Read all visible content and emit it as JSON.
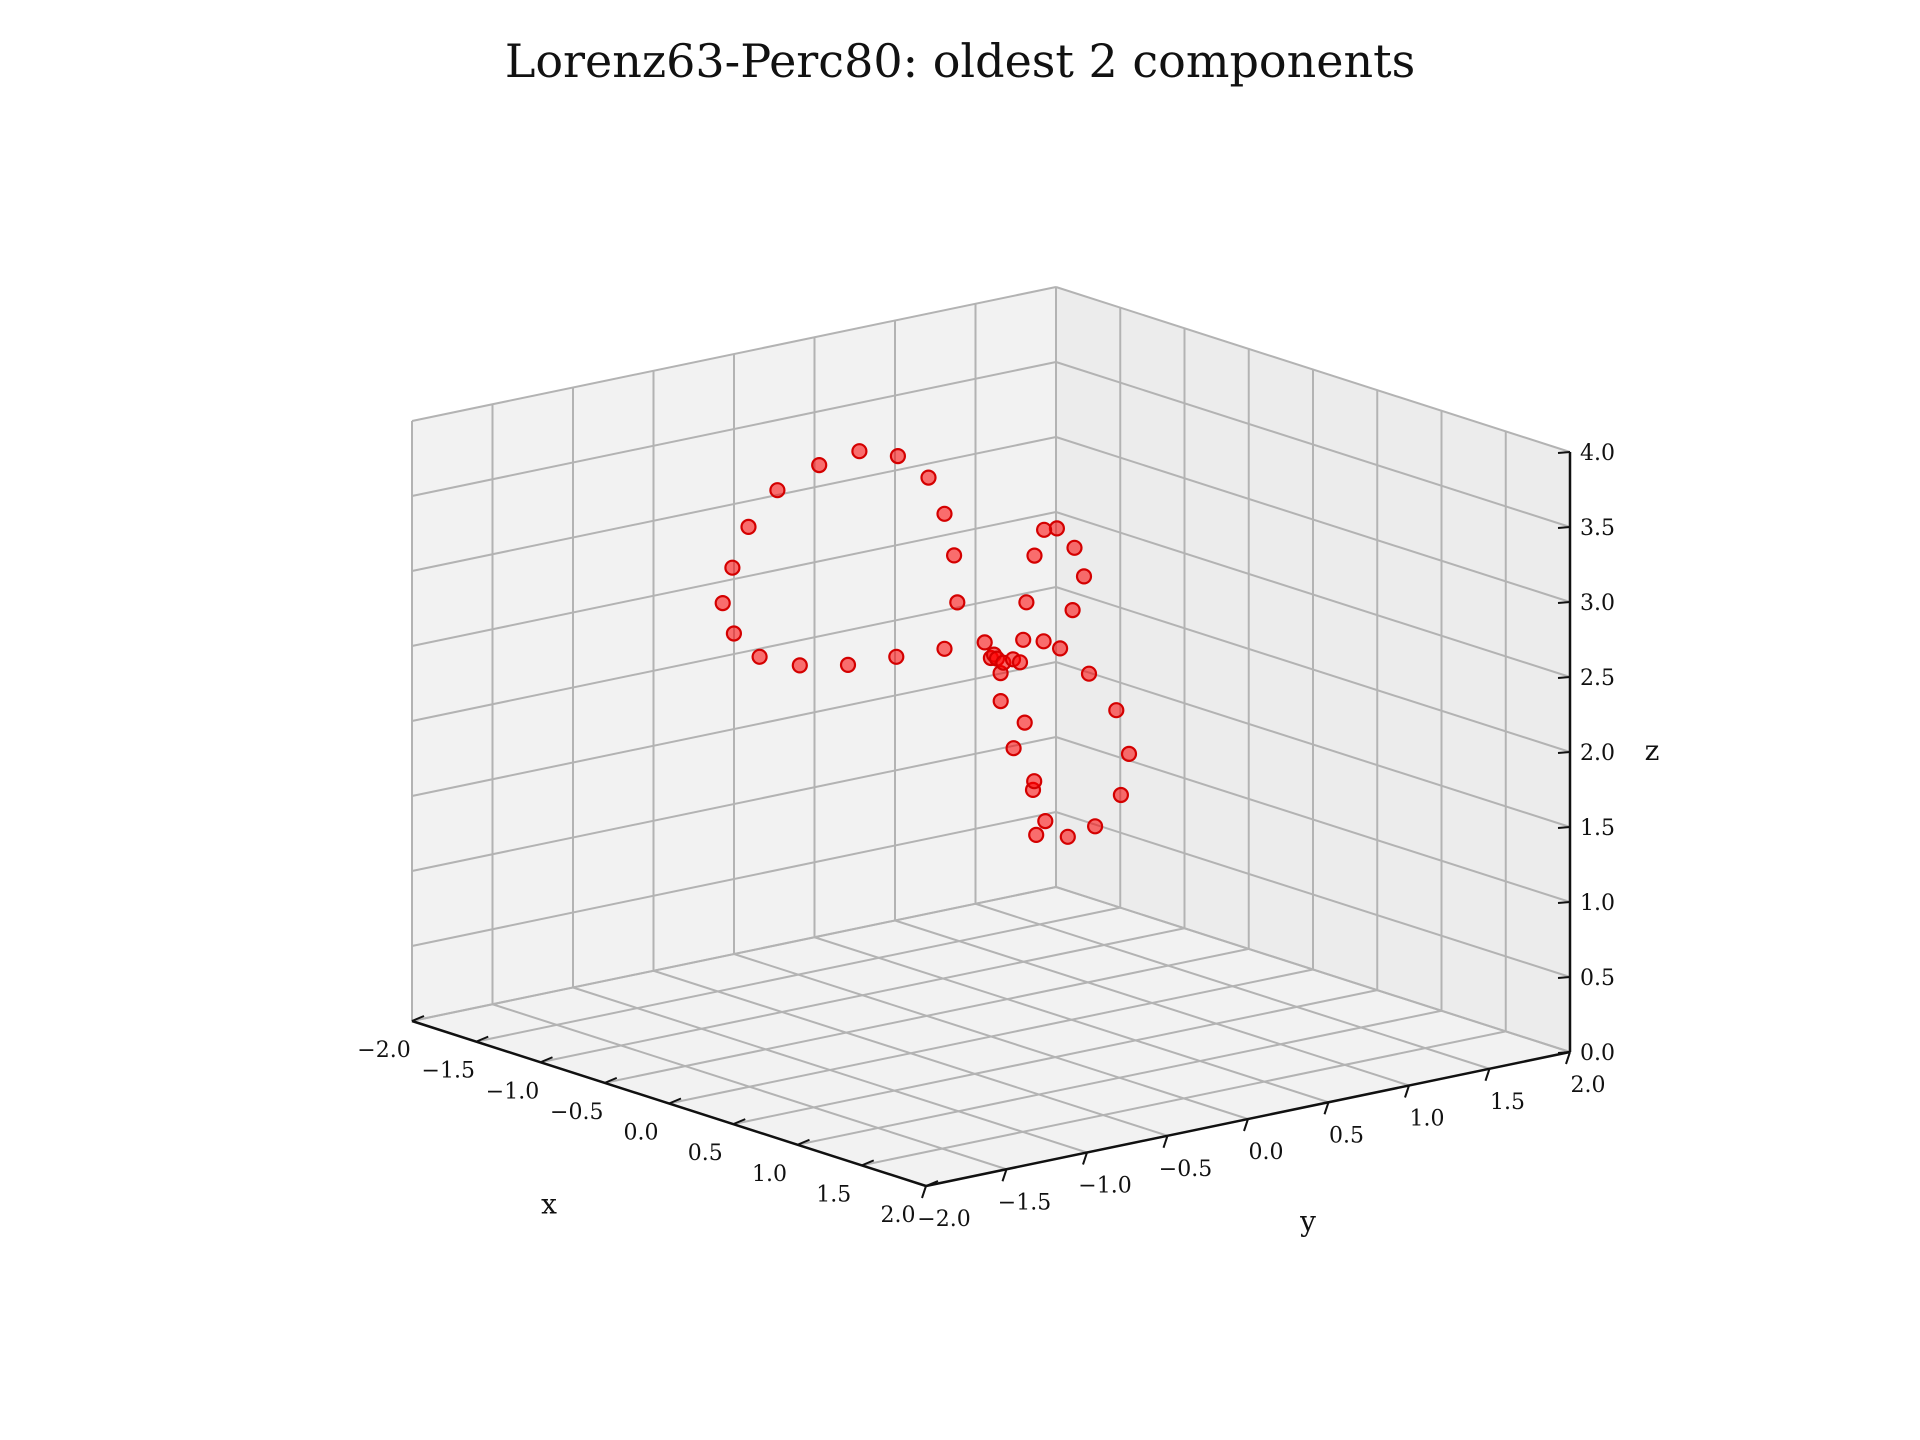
{
  "title": "Lorenz63-Perc80: oldest 2 components",
  "chart_data": {
    "type": "scatter",
    "projection": "3d",
    "title": "Lorenz63-Perc80: oldest 2 components",
    "xlabel": "x",
    "ylabel": "y",
    "zlabel": "z",
    "xlim": [
      -2.0,
      2.0
    ],
    "ylim": [
      -2.0,
      2.0
    ],
    "zlim": [
      0.0,
      4.0
    ],
    "x_ticks": [
      "−2.0",
      "−1.5",
      "−1.0",
      "−0.5",
      "0.0",
      "0.5",
      "1.0",
      "1.5",
      "2.0"
    ],
    "y_ticks": [
      "−2.0",
      "−1.5",
      "−1.0",
      "−0.5",
      "0.0",
      "0.5",
      "1.0",
      "1.5",
      "2.0"
    ],
    "z_ticks": [
      "0.0",
      "0.5",
      "1.0",
      "1.5",
      "2.0",
      "2.5",
      "3.0",
      "3.5",
      "4.0"
    ],
    "grid": true,
    "marker_color": "#ff0000",
    "marker_edge_color": "#d40000",
    "series": [
      {
        "points": [
          [
            -0.4,
            0.6,
            1.1
          ],
          [
            -0.3,
            0.5,
            1.45
          ],
          [
            -0.2,
            0.3,
            1.8
          ],
          [
            -0.05,
            0.1,
            2.2
          ],
          [
            0.2,
            -0.1,
            2.5
          ],
          [
            0.5,
            -0.4,
            2.75
          ],
          [
            0.9,
            -0.7,
            2.95
          ],
          [
            1.3,
            -1.0,
            3.1
          ],
          [
            1.6,
            -1.2,
            3.2
          ],
          [
            1.8,
            -1.3,
            3.3
          ],
          [
            1.85,
            -1.15,
            3.4
          ],
          [
            1.7,
            -0.85,
            3.5
          ],
          [
            1.35,
            -0.5,
            3.55
          ],
          [
            0.9,
            -0.2,
            3.55
          ],
          [
            0.45,
            0.05,
            3.5
          ],
          [
            0.1,
            0.25,
            3.35
          ],
          [
            -0.1,
            0.35,
            3.1
          ],
          [
            -0.1,
            0.3,
            2.8
          ],
          [
            0.1,
            0.1,
            2.5
          ],
          [
            0.45,
            -0.15,
            2.25
          ],
          [
            0.9,
            -0.45,
            2.05
          ],
          [
            1.3,
            -0.7,
            1.95
          ],
          [
            1.6,
            -0.8,
            1.95
          ],
          [
            1.75,
            -0.75,
            2.05
          ],
          [
            1.7,
            -0.55,
            2.2
          ],
          [
            1.45,
            -0.3,
            2.35
          ],
          [
            1.1,
            -0.1,
            2.5
          ],
          [
            0.7,
            0.05,
            2.6
          ],
          [
            0.35,
            0.15,
            2.65
          ],
          [
            0.0,
            0.2,
            2.6
          ],
          [
            -0.3,
            0.2,
            2.5
          ],
          [
            -0.55,
            0.15,
            2.4
          ],
          [
            -0.8,
            0.05,
            2.3
          ],
          [
            -1.05,
            -0.05,
            2.2
          ],
          [
            -1.3,
            -0.15,
            2.15
          ],
          [
            -1.55,
            -0.2,
            2.15
          ],
          [
            -1.75,
            -0.2,
            2.25
          ],
          [
            -1.9,
            -0.15,
            2.4
          ],
          [
            -1.95,
            -0.05,
            2.6
          ],
          [
            -1.95,
            0.05,
            2.85
          ],
          [
            -1.85,
            0.15,
            3.1
          ],
          [
            -1.65,
            0.25,
            3.3
          ],
          [
            -1.4,
            0.3,
            3.45
          ],
          [
            -1.1,
            0.3,
            3.5
          ],
          [
            -0.8,
            0.25,
            3.45
          ],
          [
            -0.55,
            0.15,
            3.3
          ],
          [
            -0.35,
            0.05,
            3.1
          ],
          [
            -0.2,
            -0.05,
            2.85
          ]
        ]
      }
    ]
  }
}
